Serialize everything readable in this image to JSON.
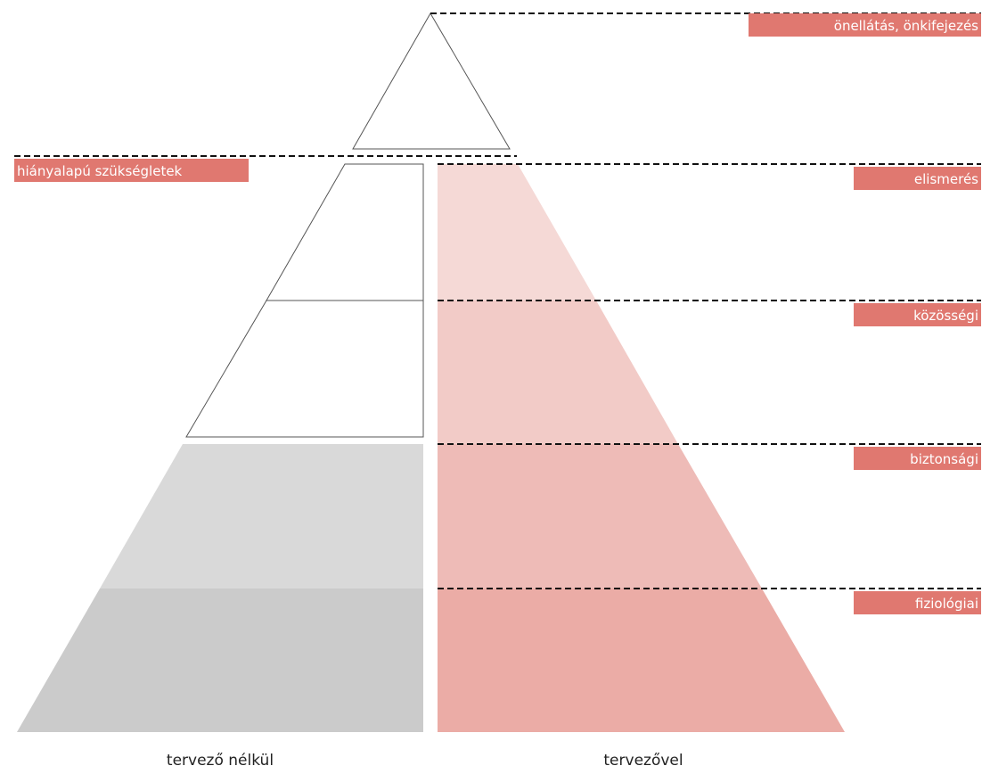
{
  "diagram": {
    "left_caption": "tervező nélkül",
    "right_caption": "tervezővel",
    "deficit_label": "hiányalapú szükségletek",
    "levels": {
      "top": "önellátás, önkifejezés",
      "recognition": "elismerés",
      "community": "közösségi",
      "safety": "biztonsági",
      "physiological": "fiziológiai"
    }
  },
  "colors": {
    "label_bg": "#e07870",
    "gray_light": "#d9d9d9",
    "gray_dark": "#cbcbcb",
    "pink_1": "#f5d9d6",
    "pink_2": "#f2cbc7",
    "pink_3": "#eebbb7",
    "pink_4": "#ebaca6"
  }
}
